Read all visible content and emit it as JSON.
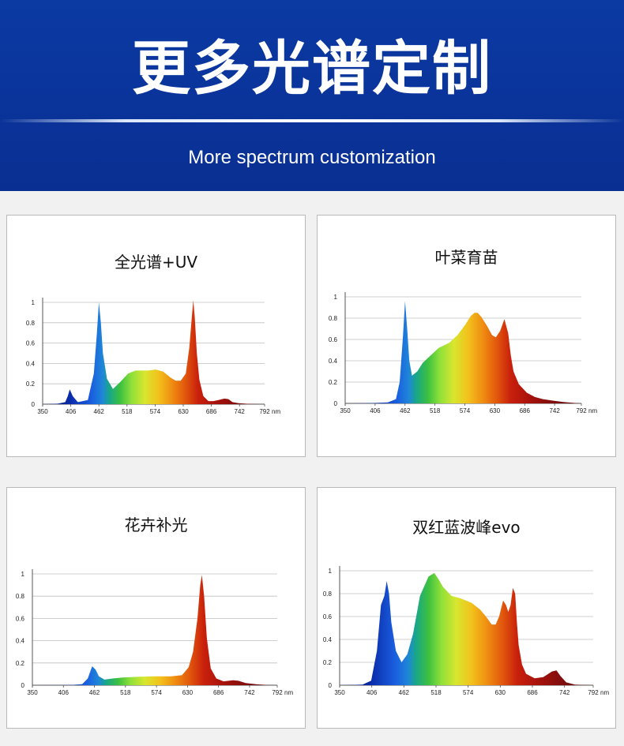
{
  "banner": {
    "title": "更多光谱定制",
    "subtitle": "More spectrum customization"
  },
  "axis_unit": "nm",
  "chart_data": [
    {
      "type": "area",
      "title": "全光谱+UV",
      "x_ticks": [
        350,
        406,
        462,
        518,
        574,
        630,
        686,
        742,
        792
      ],
      "y_ticks": [
        0,
        0.2,
        0.4,
        0.6,
        0.8,
        1
      ],
      "xlim": [
        350,
        792
      ],
      "ylim": [
        0,
        1
      ],
      "grid": true,
      "x": [
        350,
        380,
        395,
        400,
        404,
        410,
        420,
        440,
        452,
        458,
        462,
        466,
        470,
        478,
        490,
        505,
        520,
        535,
        550,
        560,
        575,
        590,
        605,
        615,
        625,
        635,
        642,
        647,
        650,
        653,
        657,
        662,
        670,
        680,
        690,
        700,
        712,
        720,
        728,
        740,
        760,
        780,
        792
      ],
      "y": [
        0,
        0.005,
        0.02,
        0.08,
        0.145,
        0.08,
        0.02,
        0.04,
        0.3,
        0.7,
        1.0,
        0.8,
        0.5,
        0.25,
        0.15,
        0.22,
        0.3,
        0.33,
        0.33,
        0.33,
        0.34,
        0.32,
        0.26,
        0.23,
        0.23,
        0.3,
        0.55,
        0.85,
        1.02,
        0.85,
        0.5,
        0.24,
        0.08,
        0.03,
        0.03,
        0.04,
        0.055,
        0.05,
        0.02,
        0.01,
        0.003,
        0.001,
        0
      ]
    },
    {
      "type": "area",
      "title": "叶菜育苗",
      "x_ticks": [
        350,
        406,
        462,
        518,
        574,
        630,
        686,
        742,
        792
      ],
      "y_ticks": [
        0,
        0.2,
        0.4,
        0.6,
        0.8,
        1
      ],
      "xlim": [
        350,
        792
      ],
      "ylim": [
        0,
        1
      ],
      "grid": true,
      "x": [
        350,
        400,
        430,
        445,
        452,
        458,
        462,
        466,
        470,
        475,
        485,
        495,
        510,
        525,
        545,
        560,
        575,
        585,
        592,
        598,
        605,
        615,
        625,
        632,
        640,
        648,
        655,
        660,
        665,
        675,
        690,
        705,
        720,
        740,
        760,
        780,
        792
      ],
      "y": [
        0,
        0.003,
        0.01,
        0.04,
        0.2,
        0.62,
        0.96,
        0.7,
        0.4,
        0.26,
        0.3,
        0.38,
        0.45,
        0.52,
        0.57,
        0.64,
        0.74,
        0.82,
        0.85,
        0.85,
        0.81,
        0.73,
        0.64,
        0.62,
        0.68,
        0.79,
        0.66,
        0.45,
        0.3,
        0.18,
        0.1,
        0.06,
        0.04,
        0.025,
        0.012,
        0.004,
        0
      ]
    },
    {
      "type": "area",
      "title": "花卉补光",
      "x_ticks": [
        350,
        406,
        462,
        518,
        574,
        630,
        686,
        742,
        792
      ],
      "y_ticks": [
        0,
        0.2,
        0.4,
        0.6,
        0.8,
        1
      ],
      "xlim": [
        350,
        792
      ],
      "ylim": [
        0,
        1
      ],
      "grid": true,
      "x": [
        350,
        420,
        440,
        450,
        458,
        464,
        470,
        480,
        495,
        515,
        540,
        570,
        600,
        620,
        632,
        640,
        648,
        653,
        656,
        660,
        665,
        672,
        682,
        695,
        712,
        722,
        735,
        755,
        775,
        792
      ],
      "y": [
        0,
        0.002,
        0.01,
        0.06,
        0.17,
        0.14,
        0.08,
        0.05,
        0.06,
        0.07,
        0.075,
        0.08,
        0.08,
        0.09,
        0.16,
        0.3,
        0.6,
        0.9,
        0.99,
        0.8,
        0.42,
        0.15,
        0.06,
        0.035,
        0.045,
        0.04,
        0.02,
        0.008,
        0.002,
        0
      ]
    },
    {
      "type": "area",
      "title": "双红蓝波峰evo",
      "x_ticks": [
        350,
        406,
        462,
        518,
        574,
        630,
        686,
        742,
        792
      ],
      "y_ticks": [
        0,
        0.2,
        0.4,
        0.6,
        0.8,
        1
      ],
      "xlim": [
        350,
        792
      ],
      "ylim": [
        0,
        1
      ],
      "grid": true,
      "x": [
        350,
        390,
        405,
        415,
        422,
        428,
        432,
        436,
        440,
        448,
        458,
        468,
        478,
        490,
        505,
        515,
        522,
        530,
        545,
        560,
        580,
        595,
        605,
        615,
        622,
        628,
        635,
        640,
        644,
        648,
        652,
        656,
        659,
        662,
        668,
        675,
        690,
        705,
        720,
        728,
        735,
        745,
        760,
        792
      ],
      "y": [
        0,
        0.005,
        0.04,
        0.3,
        0.7,
        0.78,
        0.91,
        0.8,
        0.55,
        0.3,
        0.2,
        0.27,
        0.45,
        0.78,
        0.95,
        0.98,
        0.93,
        0.86,
        0.78,
        0.76,
        0.72,
        0.66,
        0.6,
        0.53,
        0.53,
        0.6,
        0.74,
        0.7,
        0.64,
        0.7,
        0.85,
        0.8,
        0.55,
        0.35,
        0.18,
        0.1,
        0.06,
        0.07,
        0.12,
        0.13,
        0.08,
        0.025,
        0.005,
        0
      ]
    }
  ]
}
